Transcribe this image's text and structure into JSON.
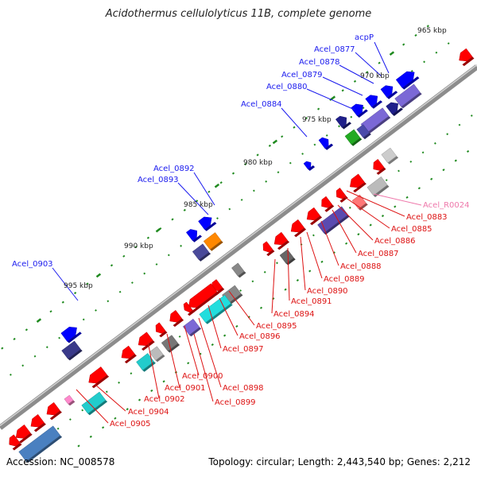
{
  "title": "Acidothermus cellulolyticus 11B, complete genome",
  "footer": {
    "accession": "Accession: NC_008578",
    "summary": "Topology: circular; Length: 2,443,540 bp; Genes: 2,212"
  },
  "colors": {
    "backbone": "#8c8c8c",
    "forward_label": "#1a1aee",
    "reverse_label": "#dd1111",
    "rna_label": "#ee77aa",
    "tick": "#1f8a1f"
  },
  "scale_labels": [
    "965 kbp",
    "970 kbp",
    "975 kbp",
    "980 kbp",
    "985 kbp",
    "990 kbp",
    "995 kbp"
  ],
  "forward_genes": [
    "acpP",
    "Acel_0877",
    "Acel_0878",
    "Acel_0879",
    "Acel_0880",
    "Acel_0884",
    "Acel_0892",
    "Acel_0893",
    "Acel_0903"
  ],
  "reverse_genes": [
    "Acel_0883",
    "Acel_0885",
    "Acel_0886",
    "Acel_0887",
    "Acel_0888",
    "Acel_0889",
    "Acel_0890",
    "Acel_0891",
    "Acel_0894",
    "Acel_0895",
    "Acel_0896",
    "Acel_0897",
    "Acel_0898",
    "Acel_0899",
    "Acel_0900",
    "Acel_0901",
    "Acel_0902",
    "Acel_0904",
    "Acel_0905"
  ],
  "rna_genes": [
    "Acel_R0024"
  ]
}
